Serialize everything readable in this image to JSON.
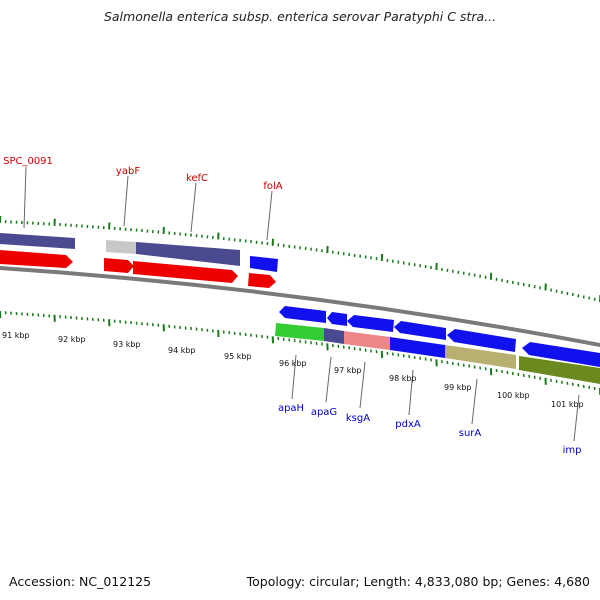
{
  "title": "Salmonella enterica subsp. enterica serovar Paratyphi C stra...",
  "footer": {
    "accession": "Accession: NC_012125",
    "topology": "Topology: circular; Length: 4,833,080 bp; Genes: 4,680"
  },
  "kbp_labels": [
    "91 kbp",
    "92 kbp",
    "93 kbp",
    "94 kbp",
    "95 kbp",
    "96 kbp",
    "97 kbp",
    "98 kbp",
    "99 kbp",
    "100 kbp",
    "101 kbp"
  ],
  "colors": {
    "red_label": "#cc0000",
    "blue_label": "#0000cc",
    "cds": "#ee0000",
    "blue": "#1111ee",
    "navy": "#4a4a90",
    "green": "#33cc33",
    "pink": "#ee8888",
    "olive": "#b8b070",
    "dkgreen": "#6a8a20",
    "lightgray": "#c8c8c8",
    "backbone": "#7a7a7a",
    "tick": "#1a7a1a"
  },
  "gene_labels_top": [
    "SPC_0091",
    "yabF",
    "kefC",
    "folA"
  ],
  "gene_labels_bottom": [
    "apaH",
    "apaG",
    "ksgA",
    "pdxA",
    "surA",
    "imp"
  ]
}
